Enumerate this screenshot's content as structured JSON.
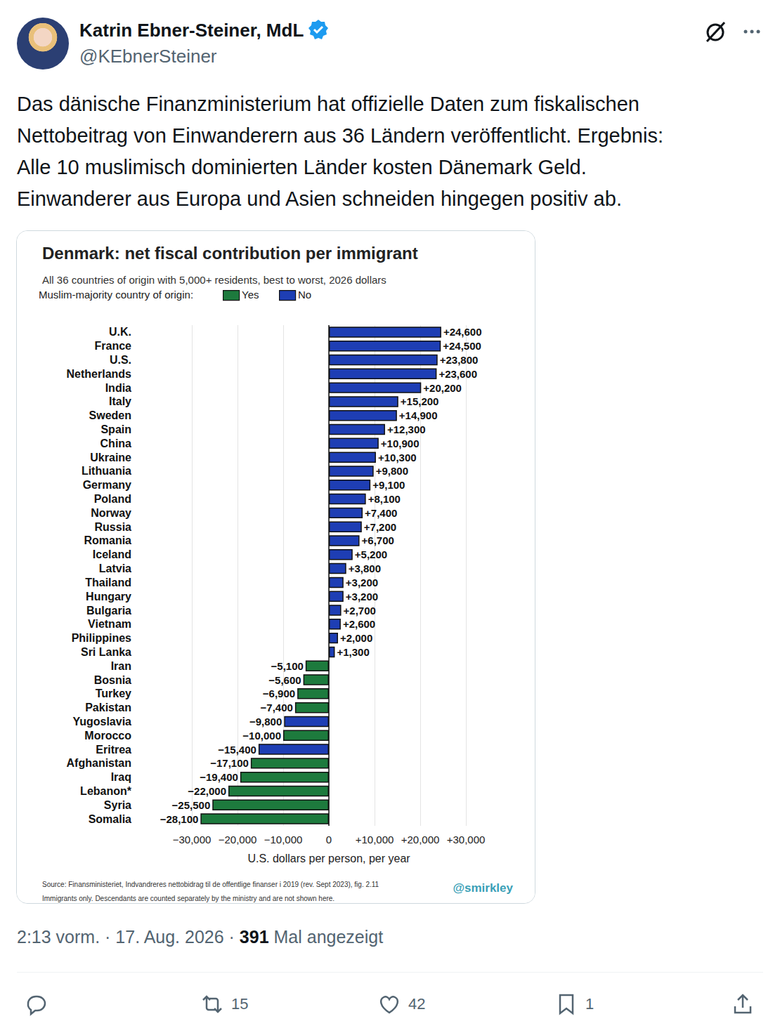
{
  "tweet": {
    "author": {
      "name": "Katrin Ebner-Steiner, MdL",
      "handle": "@KEbnerSteiner"
    },
    "text_lines": [
      "Das dänische Finanzministerium hat offizielle Daten zum fiskalischen",
      "Nettobeitrag von Einwanderern aus 36 Ländern veröffentlicht. Ergebnis:",
      "Alle 10 muslimisch dominierten Länder kosten Dänemark Geld.",
      "Einwanderer aus Europa und Asien schneiden hingegen positiv ab."
    ],
    "timestamp": "2:13 vorm. · 17. Aug. 2026 ·",
    "views": 391,
    "views_label": "Mal angezeigt",
    "reposts": 15,
    "likes": 42,
    "bookmarks": 1
  },
  "chart_data": {
    "type": "bar",
    "orientation": "horizontal",
    "title": "Denmark: net fiscal contribution per immigrant",
    "subtitle": "All 36 countries of origin with 5,000+ residents, best to worst, 2026 dollars",
    "legend_title": "Muslim-majority country of origin:",
    "legend_entries": [
      {
        "name": "Yes",
        "color": "#1d7a3d"
      },
      {
        "name": "No",
        "color": "#1e3eb4"
      }
    ],
    "categories": [
      "U.K.",
      "France",
      "U.S.",
      "Netherlands",
      "India",
      "Italy",
      "Sweden",
      "Spain",
      "China",
      "Ukraine",
      "Lithuania",
      "Germany",
      "Poland",
      "Norway",
      "Russia",
      "Romania",
      "Iceland",
      "Latvia",
      "Thailand",
      "Hungary",
      "Bulgaria",
      "Vietnam",
      "Philippines",
      "Sri Lanka",
      "Iran",
      "Bosnia",
      "Turkey",
      "Pakistan",
      "Yugoslavia",
      "Morocco",
      "Eritrea",
      "Afghanistan",
      "Iraq",
      "Lebanon*",
      "Syria",
      "Somalia"
    ],
    "values": [
      24600,
      24500,
      23800,
      23600,
      20200,
      15200,
      14900,
      12300,
      10900,
      10300,
      9800,
      9100,
      8100,
      7400,
      7200,
      6700,
      5200,
      3800,
      3200,
      3200,
      2700,
      2600,
      2000,
      1300,
      -5100,
      -5600,
      -6900,
      -7400,
      -9800,
      -10000,
      -15400,
      -17100,
      -19400,
      -22000,
      -25500,
      -28100
    ],
    "value_labels": [
      "+24,600",
      "+24,500",
      "+23,800",
      "+23,600",
      "+20,200",
      "+15,200",
      "+14,900",
      "+12,300",
      "+10,900",
      "+10,300",
      "+9,800",
      "+9,100",
      "+8,100",
      "+7,400",
      "+7,200",
      "+6,700",
      "+5,200",
      "+3,800",
      "+3,200",
      "+3,200",
      "+2,700",
      "+2,600",
      "+2,000",
      "+1,300",
      "−5,100",
      "−5,600",
      "−6,900",
      "−7,400",
      "−9,800",
      "−10,000",
      "−15,400",
      "−17,100",
      "−19,400",
      "−22,000",
      "−25,500",
      "−28,100"
    ],
    "colors": [
      "#1e3eb4",
      "#1e3eb4",
      "#1e3eb4",
      "#1e3eb4",
      "#1e3eb4",
      "#1e3eb4",
      "#1e3eb4",
      "#1e3eb4",
      "#1e3eb4",
      "#1e3eb4",
      "#1e3eb4",
      "#1e3eb4",
      "#1e3eb4",
      "#1e3eb4",
      "#1e3eb4",
      "#1e3eb4",
      "#1e3eb4",
      "#1e3eb4",
      "#1e3eb4",
      "#1e3eb4",
      "#1e3eb4",
      "#1e3eb4",
      "#1e3eb4",
      "#1e3eb4",
      "#1d7a3d",
      "#1d7a3d",
      "#1d7a3d",
      "#1d7a3d",
      "#1e3eb4",
      "#1d7a3d",
      "#1e3eb4",
      "#1d7a3d",
      "#1d7a3d",
      "#1d7a3d",
      "#1d7a3d",
      "#1d7a3d"
    ],
    "xlim": [
      -30000,
      30000
    ],
    "xticks": [
      {
        "value": -30000,
        "label": "−30,000"
      },
      {
        "value": -20000,
        "label": "−20,000"
      },
      {
        "value": -10000,
        "label": "−10,000"
      },
      0,
      {
        "value": 10000,
        "label": "+10,000"
      },
      {
        "value": 20000,
        "label": "+20,000"
      },
      {
        "value": 30000,
        "label": "+30,000"
      }
    ],
    "xlabel": "U.S. dollars per person, per year",
    "grid": true,
    "data_labels": true,
    "footnotes": [
      "Source: Finansministeriet, Indvandreres nettobidrag til de offentlige finanser i 2019 (rev. Sept 2023), fig. 2.11",
      "Immigrants only. Descendants are counted separately by the ministry and are not shown here."
    ],
    "credit": "@smirkley"
  }
}
